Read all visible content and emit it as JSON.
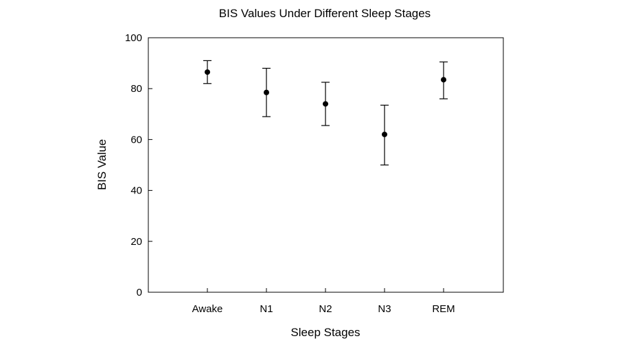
{
  "chart_data": {
    "type": "scatter",
    "title": "BIS Values Under Different Sleep Stages",
    "xlabel": "Sleep Stages",
    "ylabel": "BIS Value",
    "categories": [
      "Awake",
      "N1",
      "N2",
      "N3",
      "REM"
    ],
    "series": [
      {
        "values": [
          86.5,
          78.5,
          74,
          62,
          83.5
        ],
        "error_upper": [
          91,
          88,
          82.5,
          73.5,
          90.5
        ],
        "error_lower": [
          82,
          69,
          65.5,
          50,
          76
        ]
      }
    ],
    "ylim": [
      0,
      100
    ],
    "yticks": [
      0,
      20,
      40,
      60,
      80,
      100
    ],
    "grid": false,
    "legend": "none"
  }
}
